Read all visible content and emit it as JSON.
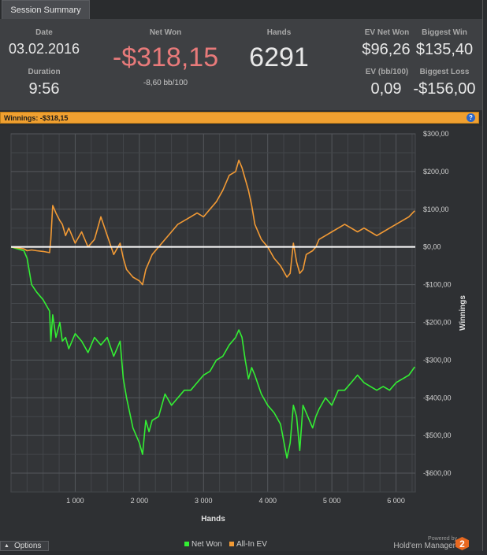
{
  "tab": {
    "label": "Session Summary"
  },
  "summary": {
    "date_label": "Date",
    "date_value": "03.02.2016",
    "duration_label": "Duration",
    "duration_value": "9:56",
    "net_won_label": "Net Won",
    "net_won_value": "-$318,15",
    "net_won_sub": "-8,60 bb/100",
    "hands_label": "Hands",
    "hands_value": "6291",
    "ev_net_won_label": "EV Net Won",
    "ev_net_won_value": "$96,26",
    "ev_bb_label": "EV (bb/100)",
    "ev_bb_value": "0,09",
    "biggest_win_label": "Biggest Win",
    "biggest_win_value": "$135,40",
    "biggest_loss_label": "Biggest Loss",
    "biggest_loss_value": "-$156,00"
  },
  "winnings_bar": {
    "text": "Winnings:  -$318,15",
    "help_icon": "help-circle-icon"
  },
  "colors": {
    "net_won": "#33ee33",
    "all_in_ev": "#f29a35",
    "negative": "#e87a7a",
    "accent_bar": "#f0a030"
  },
  "chart_data": {
    "type": "line",
    "xlabel": "Hands",
    "ylabel": "Winnings",
    "xlim": [
      0,
      6300
    ],
    "ylim": [
      -650,
      300
    ],
    "x_ticks": [
      1000,
      2000,
      3000,
      4000,
      5000,
      6000
    ],
    "x_tick_labels": [
      "1 000",
      "2 000",
      "3 000",
      "4 000",
      "5 000",
      "6 000"
    ],
    "y_ticks": [
      300,
      200,
      100,
      0,
      -100,
      -200,
      -300,
      -400,
      -500,
      -600
    ],
    "y_tick_labels": [
      "$300,00",
      "$200,00",
      "$100,00",
      "$0,00",
      "-$100,00",
      "-$200,00",
      "-$300,00",
      "-$400,00",
      "-$500,00",
      "-$600,00"
    ],
    "grid": true,
    "legend_position": "bottom-right",
    "series": [
      {
        "name": "Net Won",
        "color": "#33ee33",
        "x": [
          0,
          200,
          250,
          320,
          400,
          500,
          600,
          620,
          650,
          700,
          760,
          800,
          850,
          900,
          1000,
          1100,
          1200,
          1300,
          1400,
          1500,
          1600,
          1700,
          1750,
          1800,
          1900,
          2000,
          2050,
          2100,
          2150,
          2200,
          2300,
          2400,
          2500,
          2600,
          2700,
          2800,
          2900,
          3000,
          3100,
          3200,
          3300,
          3400,
          3500,
          3550,
          3600,
          3650,
          3700,
          3750,
          3800,
          3900,
          4000,
          4100,
          4200,
          4300,
          4350,
          4400,
          4450,
          4500,
          4550,
          4600,
          4700,
          4750,
          4800,
          4900,
          5000,
          5100,
          5200,
          5300,
          5400,
          5500,
          5600,
          5700,
          5800,
          5900,
          6000,
          6100,
          6200,
          6291
        ],
        "y": [
          0,
          -10,
          -30,
          -100,
          -120,
          -140,
          -170,
          -250,
          -180,
          -240,
          -200,
          -250,
          -240,
          -270,
          -230,
          -250,
          -280,
          -240,
          -260,
          -240,
          -290,
          -250,
          -350,
          -400,
          -480,
          -520,
          -550,
          -460,
          -490,
          -460,
          -450,
          -390,
          -420,
          -400,
          -380,
          -380,
          -360,
          -340,
          -330,
          -300,
          -290,
          -260,
          -240,
          -220,
          -240,
          -300,
          -350,
          -320,
          -340,
          -390,
          -420,
          -440,
          -470,
          -560,
          -520,
          -420,
          -450,
          -540,
          -420,
          -440,
          -480,
          -450,
          -430,
          -400,
          -420,
          -380,
          -380,
          -360,
          -340,
          -360,
          -370,
          -380,
          -370,
          -380,
          -360,
          -350,
          -340,
          -318
        ]
      },
      {
        "name": "All-In EV",
        "color": "#f29a35",
        "x": [
          0,
          200,
          250,
          320,
          400,
          500,
          600,
          620,
          650,
          700,
          760,
          800,
          850,
          900,
          1000,
          1100,
          1200,
          1300,
          1400,
          1500,
          1600,
          1700,
          1750,
          1800,
          1900,
          2000,
          2050,
          2100,
          2150,
          2200,
          2300,
          2400,
          2500,
          2600,
          2700,
          2800,
          2900,
          3000,
          3100,
          3200,
          3300,
          3400,
          3500,
          3550,
          3600,
          3650,
          3700,
          3750,
          3800,
          3900,
          4000,
          4100,
          4200,
          4300,
          4350,
          4400,
          4450,
          4500,
          4550,
          4600,
          4700,
          4750,
          4800,
          4900,
          5000,
          5100,
          5200,
          5300,
          5400,
          5500,
          5600,
          5700,
          5800,
          5900,
          6000,
          6100,
          6200,
          6291
        ],
        "y": [
          0,
          -5,
          -10,
          -8,
          -10,
          -12,
          -15,
          20,
          110,
          90,
          70,
          60,
          30,
          50,
          10,
          40,
          0,
          20,
          80,
          30,
          -20,
          10,
          -30,
          -60,
          -80,
          -90,
          -100,
          -60,
          -40,
          -20,
          0,
          20,
          40,
          60,
          70,
          80,
          90,
          80,
          100,
          120,
          150,
          190,
          200,
          230,
          210,
          180,
          150,
          110,
          60,
          20,
          0,
          -30,
          -50,
          -80,
          -70,
          10,
          -40,
          -70,
          -60,
          -20,
          -10,
          0,
          20,
          30,
          40,
          50,
          60,
          50,
          40,
          50,
          40,
          30,
          40,
          50,
          60,
          70,
          80,
          96
        ]
      }
    ]
  },
  "footer": {
    "options_label": "Options",
    "legend_net_won": "Net Won",
    "legend_all_in_ev": "All-In EV",
    "powered_by": "Powered by",
    "brand": "Hold'em Manager",
    "brand_logo": "2"
  }
}
